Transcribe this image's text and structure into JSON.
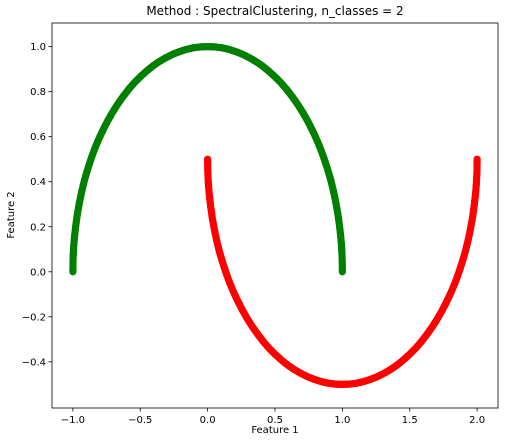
{
  "chart_data": {
    "type": "scatter",
    "title": "Method : SpectralClustering, n_classes = 2",
    "xlabel": "Feature 1",
    "ylabel": "Feature 2",
    "xlim": [
      -1.155,
      2.155
    ],
    "ylim": [
      -0.605,
      1.105
    ],
    "xticks": [
      -1.0,
      -0.5,
      0.0,
      0.5,
      1.0,
      1.5,
      2.0
    ],
    "xtick_labels": [
      "−1.0",
      "−0.5",
      "0.0",
      "0.5",
      "1.0",
      "1.5",
      "2.0"
    ],
    "yticks": [
      -0.4,
      -0.2,
      0.0,
      0.2,
      0.4,
      0.6,
      0.8,
      1.0
    ],
    "ytick_labels": [
      "−0.4",
      "−0.2",
      "0.0",
      "0.2",
      "0.4",
      "0.6",
      "0.8",
      "1.0"
    ],
    "grid": false,
    "legend": "none",
    "series": [
      {
        "color": "#008000",
        "x": [
          1.0,
          0.999,
          0.995,
          0.988,
          0.978,
          0.966,
          0.951,
          0.934,
          0.914,
          0.891,
          0.866,
          0.839,
          0.809,
          0.777,
          0.743,
          0.707,
          0.669,
          0.629,
          0.588,
          0.545,
          0.5,
          0.454,
          0.407,
          0.358,
          0.309,
          0.259,
          0.208,
          0.156,
          0.105,
          0.052,
          0.0,
          -0.052,
          -0.105,
          -0.156,
          -0.208,
          -0.259,
          -0.309,
          -0.358,
          -0.407,
          -0.454,
          -0.5,
          -0.545,
          -0.588,
          -0.629,
          -0.669,
          -0.707,
          -0.743,
          -0.777,
          -0.809,
          -0.839,
          -0.866,
          -0.891,
          -0.914,
          -0.934,
          -0.951,
          -0.966,
          -0.978,
          -0.988,
          -0.995,
          -0.999,
          -1.0
        ],
        "y": [
          0.0,
          0.052,
          0.105,
          0.156,
          0.208,
          0.259,
          0.309,
          0.358,
          0.407,
          0.454,
          0.5,
          0.545,
          0.588,
          0.629,
          0.669,
          0.707,
          0.743,
          0.777,
          0.809,
          0.839,
          0.866,
          0.891,
          0.914,
          0.934,
          0.951,
          0.966,
          0.978,
          0.988,
          0.995,
          0.999,
          1.0,
          0.999,
          0.995,
          0.988,
          0.978,
          0.966,
          0.951,
          0.934,
          0.914,
          0.891,
          0.866,
          0.839,
          0.809,
          0.777,
          0.743,
          0.707,
          0.669,
          0.629,
          0.588,
          0.545,
          0.5,
          0.454,
          0.407,
          0.358,
          0.309,
          0.259,
          0.208,
          0.156,
          0.105,
          0.052,
          0.0
        ]
      },
      {
        "color": "#ff0000",
        "x": [
          0.0,
          0.001,
          0.005,
          0.012,
          0.022,
          0.034,
          0.049,
          0.066,
          0.086,
          0.109,
          0.134,
          0.161,
          0.191,
          0.223,
          0.257,
          0.293,
          0.331,
          0.371,
          0.412,
          0.455,
          0.5,
          0.546,
          0.593,
          0.642,
          0.691,
          0.741,
          0.792,
          0.844,
          0.895,
          0.948,
          1.0,
          1.052,
          1.105,
          1.156,
          1.208,
          1.259,
          1.309,
          1.358,
          1.407,
          1.454,
          1.5,
          1.545,
          1.588,
          1.629,
          1.669,
          1.707,
          1.743,
          1.777,
          1.809,
          1.839,
          1.866,
          1.891,
          1.914,
          1.934,
          1.951,
          1.966,
          1.978,
          1.988,
          1.995,
          1.999,
          2.0
        ],
        "y": [
          0.5,
          0.448,
          0.395,
          0.344,
          0.292,
          0.241,
          0.191,
          0.142,
          0.093,
          0.046,
          0.0,
          -0.045,
          -0.088,
          -0.129,
          -0.169,
          -0.207,
          -0.243,
          -0.277,
          -0.309,
          -0.339,
          -0.366,
          -0.391,
          -0.414,
          -0.434,
          -0.451,
          -0.466,
          -0.478,
          -0.488,
          -0.495,
          -0.499,
          -0.5,
          -0.499,
          -0.495,
          -0.488,
          -0.478,
          -0.466,
          -0.451,
          -0.434,
          -0.414,
          -0.391,
          -0.366,
          -0.339,
          -0.309,
          -0.277,
          -0.243,
          -0.207,
          -0.169,
          -0.129,
          -0.088,
          -0.045,
          0.0,
          0.046,
          0.093,
          0.142,
          0.191,
          0.241,
          0.292,
          0.344,
          0.395,
          0.448,
          0.5
        ]
      }
    ]
  }
}
